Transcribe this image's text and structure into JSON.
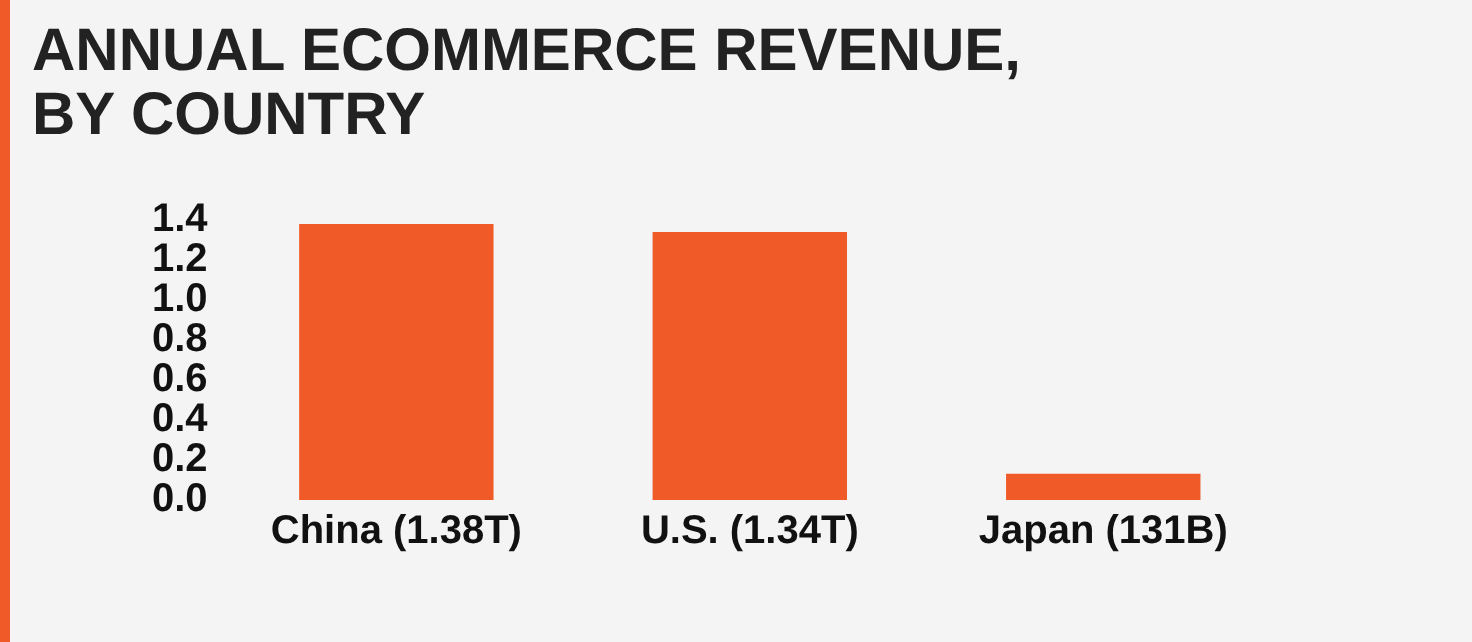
{
  "chart_data": {
    "type": "bar",
    "title": "ANNUAL ECOMMERCE REVENUE, BY COUNTRY",
    "categories": [
      "China (1.38T)",
      "U.S. (1.34T)",
      "Japan (131B)"
    ],
    "values": [
      1.38,
      1.34,
      0.131
    ],
    "color": "#f05a28",
    "ylim": [
      0,
      1.4
    ],
    "yticks": [
      {
        "value": 0,
        "label": "0.0"
      },
      {
        "value": 0.2,
        "label": "0.2"
      },
      {
        "value": 0.4,
        "label": "0.4"
      },
      {
        "value": 0.6,
        "label": "0.6"
      },
      {
        "value": 0.8,
        "label": "0.8"
      },
      {
        "value": 1,
        "label": "1.0"
      },
      {
        "value": 1.2,
        "label": "1.2"
      },
      {
        "value": 1.4,
        "label": "1.4"
      }
    ],
    "grid": false,
    "legend": false
  }
}
